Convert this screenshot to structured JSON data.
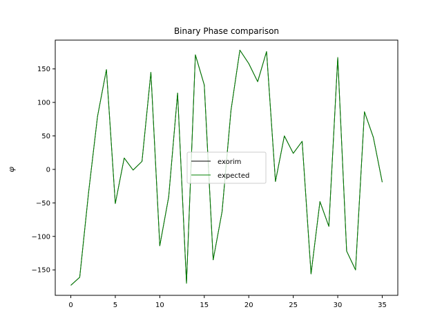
{
  "chart_data": {
    "type": "line",
    "title": "Binary Phase comparison",
    "xlabel": "",
    "ylabel": "φ",
    "xlim": [
      -1.75,
      36.75
    ],
    "ylim": [
      -188,
      193
    ],
    "xticks": [
      0,
      5,
      10,
      15,
      20,
      25,
      30,
      35
    ],
    "yticks": [
      -150,
      -100,
      -50,
      0,
      50,
      100,
      150
    ],
    "grid": false,
    "legend": {
      "placement": "center"
    },
    "x": [
      0,
      1,
      2,
      3,
      4,
      5,
      6,
      7,
      8,
      9,
      10,
      11,
      12,
      13,
      14,
      15,
      16,
      17,
      18,
      19,
      20,
      21,
      22,
      23,
      24,
      25,
      26,
      27,
      28,
      29,
      30,
      31,
      32,
      33,
      34,
      35
    ],
    "series": [
      {
        "name": "exorim",
        "color": "#000000",
        "values": [
          -173,
          -161,
          -34,
          79,
          149,
          -51,
          17,
          -1,
          12,
          145,
          -114,
          -41,
          114,
          -170,
          171,
          126,
          -135,
          -63,
          88,
          178,
          158,
          131,
          176,
          -18,
          50,
          24,
          42,
          -156,
          -48,
          -85,
          167,
          -122,
          -150,
          86,
          48,
          -19
        ]
      },
      {
        "name": "expected",
        "color": "#008000",
        "values": [
          -173,
          -161,
          -34,
          79,
          149,
          -51,
          17,
          -1,
          12,
          145,
          -114,
          -41,
          114,
          -170,
          171,
          126,
          -135,
          -63,
          88,
          178,
          158,
          131,
          176,
          -18,
          50,
          24,
          42,
          -156,
          -48,
          -85,
          167,
          -122,
          -150,
          86,
          48,
          -19
        ]
      }
    ]
  }
}
